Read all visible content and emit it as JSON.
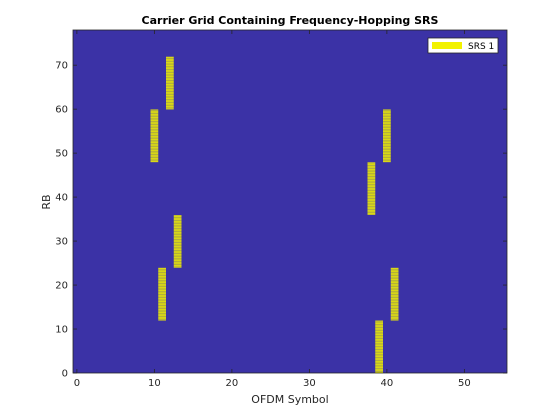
{
  "chart_data": {
    "type": "heatmap",
    "title": "Carrier Grid Containing Frequency-Hopping SRS",
    "xlabel": "OFDM Symbol",
    "ylabel": "RB",
    "xlim": [
      -0.5,
      55.5
    ],
    "ylim": [
      0,
      78
    ],
    "xticks": [
      0,
      10,
      20,
      30,
      40,
      50
    ],
    "yticks": [
      0,
      10,
      20,
      30,
      40,
      50,
      60,
      70
    ],
    "grid": false,
    "legend_position": "top-right",
    "background_color": "#3b32a6",
    "srs_color": "#f2f200",
    "series": [
      {
        "name": "SRS 1",
        "blocks": [
          {
            "symbol": 10,
            "rb_start": 48,
            "rb_end": 60
          },
          {
            "symbol": 11,
            "rb_start": 12,
            "rb_end": 24
          },
          {
            "symbol": 12,
            "rb_start": 60,
            "rb_end": 72
          },
          {
            "symbol": 13,
            "rb_start": 24,
            "rb_end": 36
          },
          {
            "symbol": 38,
            "rb_start": 36,
            "rb_end": 48
          },
          {
            "symbol": 39,
            "rb_start": 0,
            "rb_end": 12
          },
          {
            "symbol": 40,
            "rb_start": 48,
            "rb_end": 60
          },
          {
            "symbol": 41,
            "rb_start": 12,
            "rb_end": 24
          }
        ]
      }
    ]
  }
}
